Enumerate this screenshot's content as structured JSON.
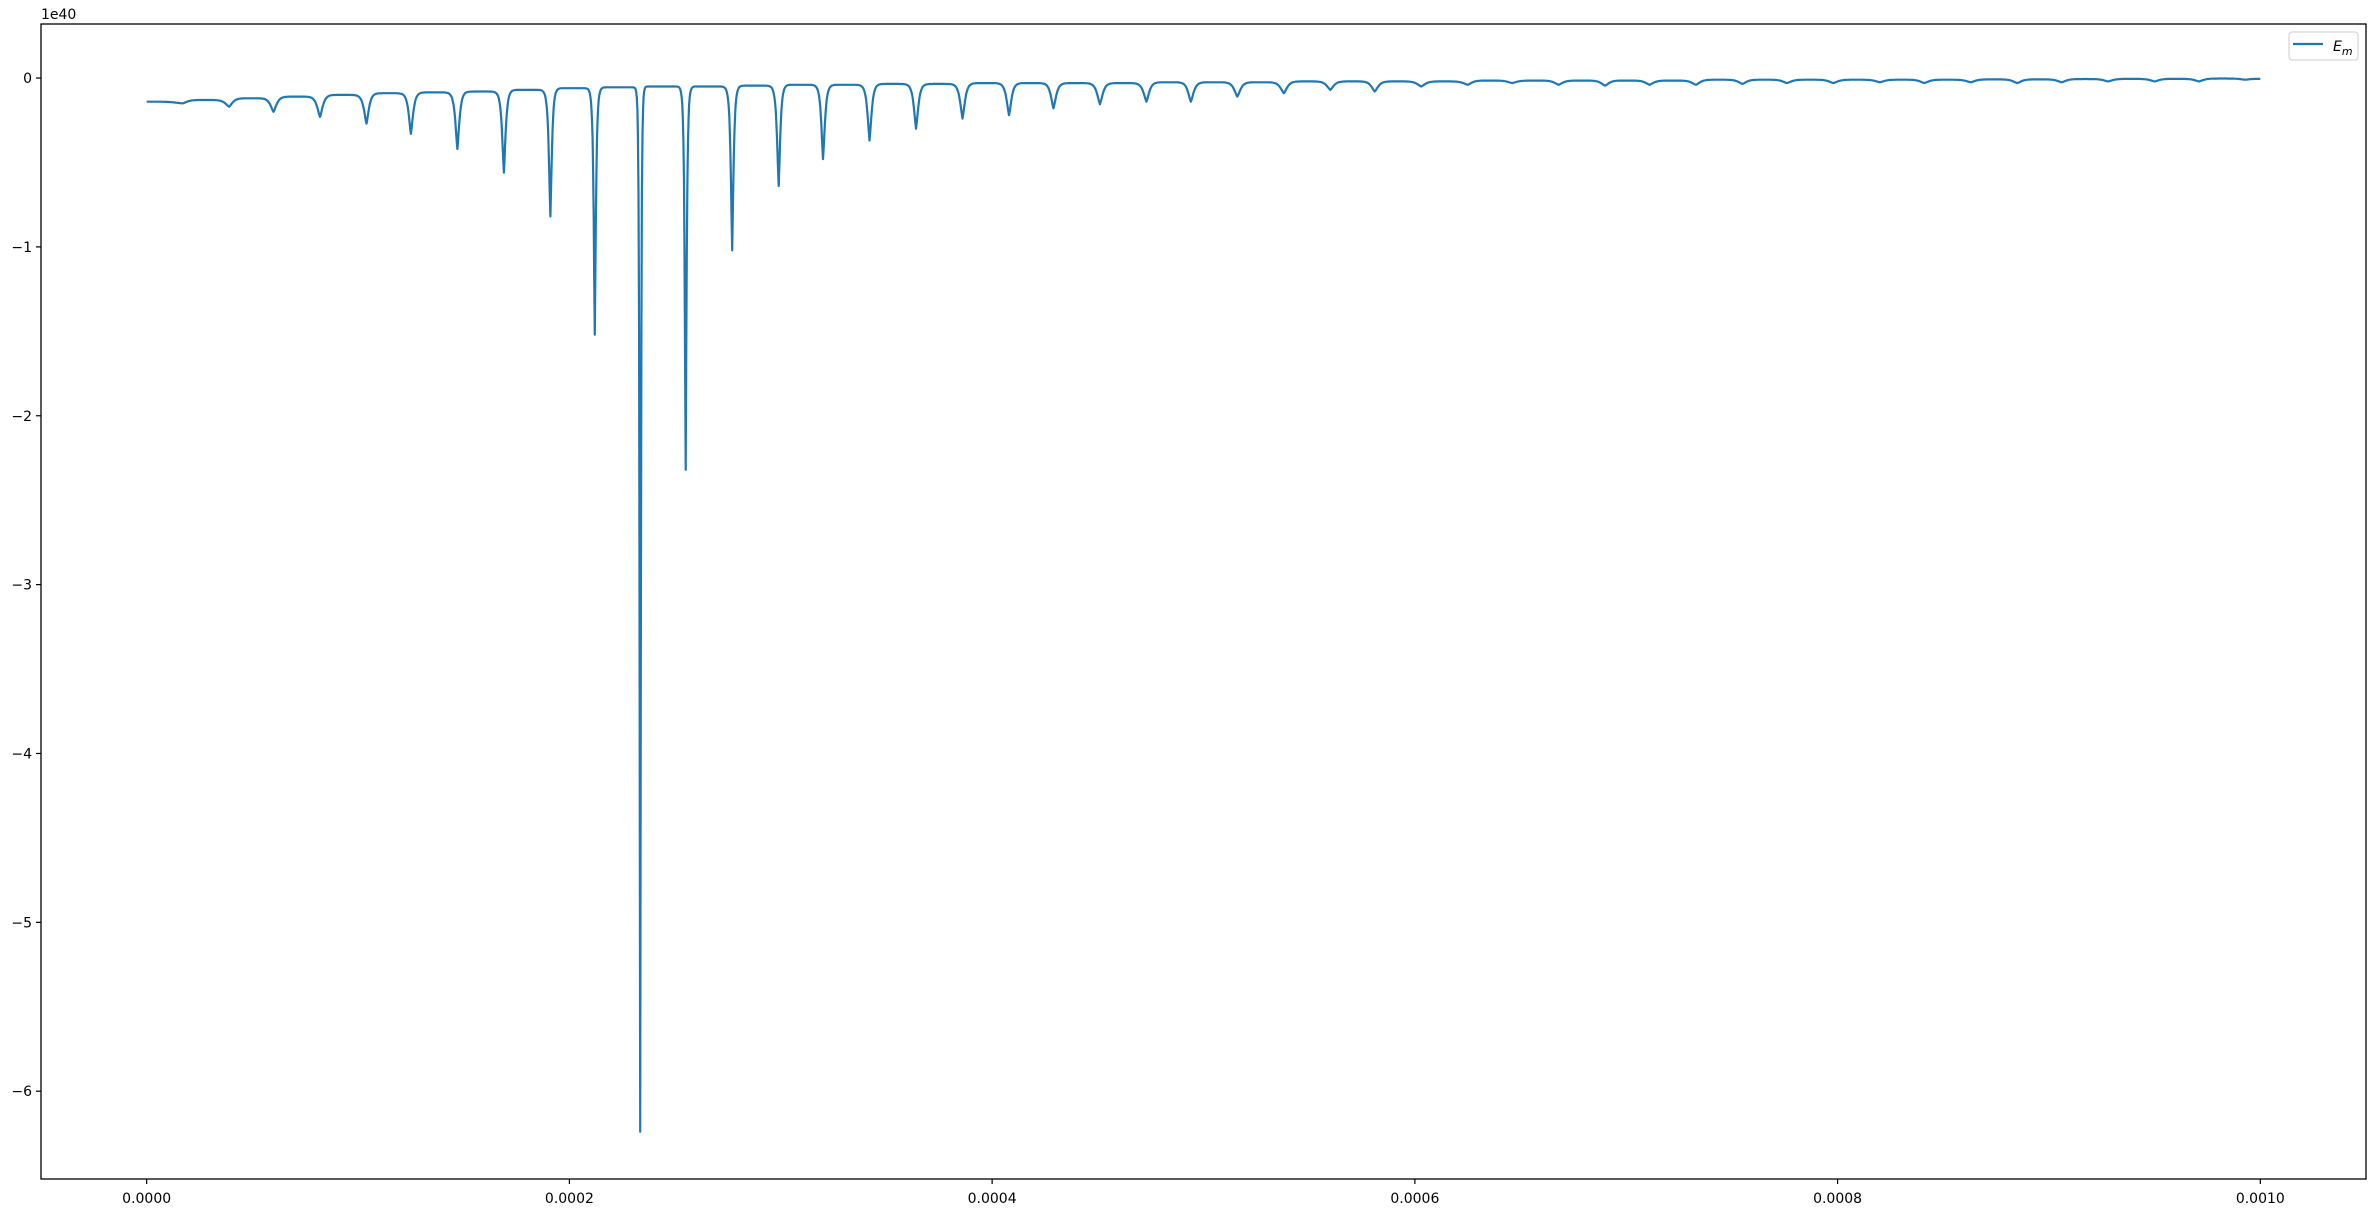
{
  "chart_data": {
    "type": "line",
    "title": "",
    "xlabel": "",
    "ylabel": "",
    "y_offset_label": "1e40",
    "xlim": [
      -5e-05,
      0.00105
    ],
    "ylim": [
      -6.52,
      0.32
    ],
    "x_ticks": [
      "0.0000",
      "0.0002",
      "0.0004",
      "0.0006",
      "0.0008",
      "0.0010"
    ],
    "x_tick_values": [
      0,
      0.0002,
      0.0004,
      0.0006,
      0.0008,
      0.001
    ],
    "y_ticks": [
      "0",
      "−1",
      "−2",
      "−3",
      "−4",
      "−5",
      "−6"
    ],
    "y_tick_values": [
      0,
      -1,
      -2,
      -3,
      -4,
      -5,
      -6
    ],
    "grid": false,
    "legend": {
      "position": "top-right",
      "label_main": "E",
      "label_sub": "m"
    },
    "series": [
      {
        "name": "E_m",
        "color": "#1f77b4",
        "start": [
          0,
          -0.14
        ],
        "end": [
          0.001,
          -0.005
        ],
        "dips_x": [
          1.7e-05,
          3.9e-05,
          6e-05,
          8.2e-05,
          0.000104,
          0.000125,
          0.000147,
          0.000169,
          0.000191,
          0.000212,
          0.0002335,
          0.000255,
          0.000277,
          0.000299,
          0.00032,
          0.000342,
          0.000364,
          0.000386,
          0.000408,
          0.000429,
          0.000451,
          0.000473,
          0.000494,
          0.000516,
          0.000538,
          0.00056,
          0.000581,
          0.000603,
          0.000625,
          0.000646,
          0.000668,
          0.00069,
          0.000711,
          0.000733,
          0.000755,
          0.000776,
          0.000798,
          0.00082,
          0.000841,
          0.000863,
          0.000885,
          0.000906,
          0.000928,
          0.00095,
          0.000971,
          0.000993
        ],
        "dips_y": [
          -0.15,
          -0.17,
          -0.2,
          -0.23,
          -0.27,
          -0.33,
          -0.42,
          -0.56,
          -0.82,
          -1.52,
          -6.24,
          -2.32,
          -1.02,
          -0.64,
          -0.48,
          -0.37,
          -0.3,
          -0.24,
          -0.22,
          -0.18,
          -0.155,
          -0.14,
          -0.14,
          -0.11,
          -0.09,
          -0.07,
          -0.08,
          -0.05,
          -0.04,
          -0.03,
          -0.04,
          -0.045,
          -0.04,
          -0.04,
          -0.035,
          -0.03,
          -0.03,
          -0.025,
          -0.03,
          -0.025,
          -0.03,
          -0.025,
          -0.02,
          -0.02,
          -0.02,
          -0.01
        ],
        "peaks_y": [
          -0.13,
          -0.12,
          -0.11,
          -0.1,
          -0.09,
          -0.085,
          -0.08,
          -0.07,
          -0.06,
          -0.055,
          -0.05,
          -0.05,
          -0.045,
          -0.04,
          -0.04,
          -0.035,
          -0.035,
          -0.03,
          -0.03,
          -0.03,
          -0.03,
          -0.025,
          -0.025,
          -0.025,
          -0.02,
          -0.02,
          -0.02,
          -0.02,
          -0.015,
          -0.015,
          -0.015,
          -0.015,
          -0.015,
          -0.01,
          -0.01,
          -0.01,
          -0.01,
          -0.01,
          -0.01,
          -0.008,
          -0.008,
          -0.006,
          -0.005,
          -0.005,
          -0.003
        ]
      }
    ]
  }
}
